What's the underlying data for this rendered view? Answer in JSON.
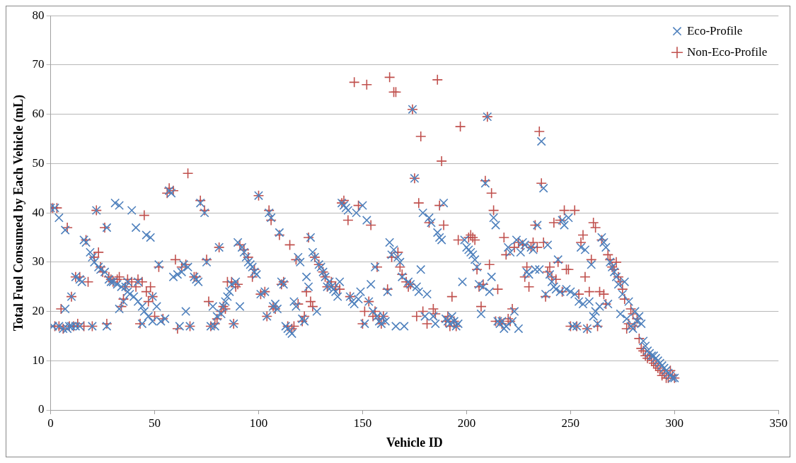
{
  "chart_data": {
    "type": "scatter",
    "xlabel": "Vehicle ID",
    "ylabel": "Total Fuel Consumed by Each Vehicle (mL)",
    "xlim": [
      0,
      350
    ],
    "xticks": [
      0,
      50,
      100,
      150,
      200,
      250,
      300,
      350
    ],
    "ylim": [
      0,
      80
    ],
    "yticks": [
      0,
      10,
      20,
      30,
      40,
      50,
      60,
      70,
      80
    ],
    "grid": "y",
    "legend": "top right",
    "series": [
      {
        "name": "Eco-Profile",
        "color": "#4f81bd",
        "marker": "cross",
        "x": [
          0,
          1,
          2,
          4,
          4,
          6,
          7,
          7,
          8,
          9,
          10,
          10,
          12,
          12,
          14,
          14,
          15,
          16,
          17,
          19,
          20,
          20,
          21,
          22,
          23,
          24,
          26,
          27,
          27,
          28,
          29,
          30,
          31,
          32,
          33,
          33,
          34,
          35,
          36,
          37,
          37,
          38,
          39,
          40,
          41,
          42,
          42,
          44,
          44,
          45,
          46,
          47,
          48,
          49,
          49,
          51,
          52,
          53,
          55,
          57,
          58,
          59,
          61,
          62,
          63,
          64,
          65,
          66,
          67,
          69,
          70,
          71,
          72,
          74,
          75,
          77,
          78,
          79,
          80,
          81,
          82,
          83,
          84,
          85,
          86,
          87,
          88,
          89,
          90,
          91,
          92,
          93,
          94,
          95,
          96,
          97,
          98,
          99,
          100,
          101,
          103,
          104,
          105,
          106,
          107,
          108,
          109,
          110,
          111,
          112,
          113,
          114,
          115,
          116,
          117,
          118,
          119,
          120,
          121,
          122,
          123,
          124,
          125,
          126,
          127,
          128,
          129,
          130,
          131,
          132,
          133,
          134,
          135,
          136,
          137,
          138,
          139,
          140,
          141,
          142,
          143,
          144,
          145,
          146,
          147,
          148,
          149,
          150,
          151,
          152,
          153,
          154,
          155,
          156,
          157,
          158,
          159,
          160,
          161,
          162,
          163,
          164,
          165,
          166,
          167,
          168,
          169,
          170,
          172,
          173,
          174,
          175,
          176,
          177,
          178,
          179,
          180,
          181,
          182,
          183,
          184,
          185,
          186,
          187,
          188,
          189,
          190,
          191,
          192,
          193,
          194,
          195,
          196,
          198,
          199,
          200,
          201,
          202,
          203,
          204,
          205,
          206,
          207,
          208,
          209,
          210,
          211,
          212,
          213,
          214,
          215,
          216,
          217,
          218,
          219,
          220,
          221,
          222,
          223,
          224,
          225,
          226,
          227,
          228,
          229,
          230,
          231,
          232,
          233,
          234,
          235,
          236,
          237,
          238,
          239,
          240,
          241,
          242,
          243,
          244,
          245,
          246,
          247,
          248,
          249,
          250,
          251,
          252,
          253,
          254,
          255,
          256,
          257,
          258,
          259,
          260,
          261,
          262,
          263,
          264,
          265,
          266,
          267,
          268,
          269,
          270,
          271,
          272,
          273,
          274,
          275,
          276,
          277,
          278,
          279,
          280,
          281,
          282,
          283,
          284,
          285,
          286,
          287,
          288,
          289,
          290,
          291,
          292,
          293,
          294,
          295,
          296,
          297,
          298,
          299,
          300
        ],
        "values": [
          41,
          17,
          41,
          39,
          17,
          16.5,
          36.5,
          20.5,
          16.5,
          17,
          17,
          23,
          17,
          27,
          17,
          26.5,
          26,
          34.5,
          34,
          32,
          31,
          17,
          30,
          40.5,
          29,
          28.5,
          28,
          37,
          17,
          26.5,
          26,
          26,
          42,
          25.5,
          41.5,
          20.5,
          25,
          22,
          25,
          24,
          26,
          23.5,
          40.5,
          23,
          37,
          22,
          26,
          21,
          17.5,
          20,
          35.5,
          19,
          35,
          18,
          23,
          21,
          29.5,
          18,
          18.5,
          44.5,
          44,
          27,
          27.5,
          17,
          28,
          29.5,
          20,
          29,
          17,
          27,
          26.5,
          26,
          42,
          40,
          30,
          17,
          21,
          17,
          19,
          33,
          19.5,
          21,
          22,
          23,
          24,
          25.5,
          17.5,
          26,
          34,
          21,
          33,
          32,
          31,
          30,
          29.5,
          29,
          28,
          27.5,
          43.5,
          23.5,
          24,
          19,
          40,
          39,
          21,
          21.5,
          20.5,
          36,
          26,
          25.5,
          17,
          16.5,
          16,
          15.5,
          22,
          21,
          31,
          30,
          18.5,
          18,
          27,
          25,
          35,
          32,
          31,
          20,
          29.5,
          29,
          28,
          27,
          25,
          26,
          25,
          24.5,
          24,
          23,
          26,
          42,
          41.5,
          41,
          40.5,
          23,
          22,
          21.5,
          40,
          22.5,
          24,
          41.5,
          17.5,
          38.5,
          22,
          25.5,
          20,
          29,
          19,
          18,
          17.5,
          19,
          18,
          24,
          34,
          31.5,
          32.5,
          17,
          31,
          30,
          27,
          17,
          26,
          25.5,
          61,
          47,
          25,
          24,
          28.5,
          40,
          19,
          23.5,
          39,
          38,
          19,
          17.5,
          36,
          35,
          34.5,
          42,
          18.5,
          18,
          17.5,
          19,
          18,
          17,
          17.5,
          26,
          34.5,
          33,
          32.5,
          32,
          31.5,
          30.5,
          29,
          25.5,
          19.5,
          25,
          46,
          59.5,
          24,
          27,
          39,
          37.5,
          18,
          17.5,
          18,
          16.5,
          17,
          33,
          32,
          18,
          20,
          34.5,
          16.5,
          32,
          34,
          33.5,
          28,
          27.5,
          33,
          32.5,
          28.5,
          37.5,
          28.5,
          54.5,
          45,
          23.5,
          33.5,
          27.5,
          26,
          25,
          24.5,
          30.5,
          24,
          38.5,
          37.5,
          24.5,
          39,
          24,
          17,
          23.5,
          17,
          22,
          33,
          21.5,
          32.5,
          16.5,
          22,
          29.5,
          19,
          20,
          17.5,
          21,
          35,
          34,
          33,
          21.5,
          30,
          29,
          28,
          27,
          25.5,
          19.5,
          23.5,
          26,
          18.5,
          22,
          17,
          16.5,
          20,
          18,
          19,
          17.5,
          14,
          13,
          12,
          11.5,
          11,
          11,
          10.5,
          10,
          9.5,
          9,
          8.5,
          8,
          7.5,
          7,
          6.5,
          6.5
        ]
      },
      {
        "name": "Non-Eco-Profile",
        "color": "#c0504d",
        "marker": "plus",
        "x": [
          0,
          1,
          2,
          3,
          4,
          5,
          6,
          8,
          9,
          10,
          11,
          12,
          13,
          14,
          16,
          17,
          18,
          20,
          21,
          22,
          23,
          24,
          25,
          26,
          27,
          28,
          29,
          30,
          32,
          33,
          34,
          35,
          36,
          37,
          39,
          41,
          42,
          43,
          44,
          45,
          46,
          47,
          48,
          49,
          50,
          52,
          54,
          56,
          57,
          59,
          60,
          61,
          63,
          65,
          66,
          67,
          69,
          70,
          72,
          74,
          75,
          76,
          77,
          79,
          80,
          81,
          82,
          83,
          84,
          85,
          87,
          88,
          89,
          90,
          91,
          93,
          95,
          97,
          98,
          100,
          101,
          103,
          104,
          105,
          106,
          107,
          108,
          110,
          111,
          112,
          114,
          115,
          116,
          117,
          118,
          119,
          121,
          122,
          123,
          124,
          125,
          126,
          127,
          129,
          131,
          132,
          133,
          135,
          137,
          139,
          140,
          141,
          143,
          144,
          146,
          148,
          150,
          151,
          152,
          153,
          154,
          155,
          156,
          157,
          158,
          159,
          160,
          162,
          163,
          164,
          165,
          166,
          167,
          168,
          169,
          171,
          172,
          173,
          174,
          175,
          176,
          177,
          178,
          179,
          181,
          182,
          184,
          185,
          186,
          187,
          188,
          189,
          190,
          191,
          192,
          193,
          194,
          195,
          196,
          197,
          201,
          202,
          203,
          204,
          205,
          206,
          207,
          208,
          209,
          210,
          211,
          212,
          213,
          214,
          215,
          216,
          217,
          218,
          219,
          220,
          221,
          222,
          223,
          225,
          227,
          228,
          229,
          230,
          231,
          232,
          233,
          234,
          235,
          236,
          237,
          238,
          239,
          240,
          241,
          242,
          243,
          244,
          245,
          246,
          247,
          248,
          249,
          250,
          252,
          253,
          254,
          255,
          256,
          257,
          258,
          259,
          260,
          261,
          262,
          263,
          264,
          265,
          266,
          267,
          268,
          269,
          270,
          271,
          272,
          273,
          274,
          275,
          276,
          277,
          278,
          279,
          280,
          281,
          282,
          283,
          284,
          285,
          286,
          287,
          288,
          289,
          290,
          291,
          292,
          293,
          294,
          295,
          296,
          297,
          298,
          299,
          300
        ],
        "values": [
          41,
          41,
          17,
          41,
          17,
          20.5,
          16.5,
          37,
          17,
          23,
          17,
          27,
          17.5,
          27,
          17,
          34.5,
          26,
          17,
          31,
          40.5,
          32,
          29,
          28,
          37,
          17.5,
          27,
          26.5,
          26,
          26.5,
          27,
          21,
          22.5,
          25,
          26.5,
          26,
          25,
          26.5,
          17.5,
          26,
          39.5,
          24,
          22,
          25,
          23,
          19,
          29,
          18.5,
          44,
          45,
          44.5,
          30.5,
          16.5,
          29,
          29.5,
          48,
          17,
          27,
          27,
          42.5,
          40.5,
          30.5,
          22,
          17,
          17.5,
          18.5,
          33,
          20,
          21,
          20.5,
          26,
          26,
          17.5,
          25,
          25.5,
          33.5,
          32.5,
          31,
          27,
          28.5,
          43.5,
          23.5,
          24,
          19,
          40.5,
          38.5,
          21,
          20.5,
          35.5,
          25.5,
          26,
          17,
          33.5,
          16.5,
          17,
          30.5,
          21.5,
          18,
          19,
          24,
          35,
          22,
          21,
          31,
          29.5,
          28,
          27,
          25,
          26,
          25,
          24.5,
          42,
          42.5,
          38.5,
          23,
          66.5,
          41.5,
          17.5,
          20,
          66,
          22,
          37.5,
          19,
          20,
          29,
          18.5,
          17.5,
          19,
          24.5,
          67.5,
          31,
          64.5,
          64.5,
          32,
          29,
          27.5,
          26,
          25,
          25.5,
          61,
          47,
          19,
          42,
          55.5,
          20,
          17.5,
          38,
          20.5,
          19.5,
          67,
          41.5,
          50.5,
          37.5,
          18,
          19,
          17,
          23,
          18,
          17,
          34.5,
          57.5,
          35,
          35.5,
          35,
          34.5,
          28.5,
          25,
          21,
          25.5,
          46.5,
          59.5,
          29.5,
          44,
          40.5,
          18,
          24.5,
          18,
          17.5,
          35,
          31.5,
          18.5,
          18,
          20.5,
          33,
          34,
          33.5,
          27,
          29,
          25,
          33,
          34,
          37.5,
          33,
          56.5,
          46,
          34,
          23,
          28,
          29,
          27,
          38,
          26.5,
          30,
          38.5,
          24,
          40.5,
          28.5,
          28.5,
          17,
          40.5,
          17,
          23.5,
          34,
          35.5,
          27,
          16.5,
          24,
          30.5,
          38,
          37,
          17,
          24,
          34.5,
          23.5,
          21.5,
          31.5,
          30.5,
          29,
          28.5,
          30,
          27,
          26,
          24.5,
          22.5,
          16.5,
          17.5,
          20.5,
          19.5,
          17,
          18.5,
          14.5,
          12.5,
          12,
          11,
          10.5,
          11,
          10,
          9.5,
          9,
          8.5,
          8,
          7,
          7.5,
          6.5,
          6.5,
          8,
          7,
          6.5
        ]
      }
    ]
  }
}
